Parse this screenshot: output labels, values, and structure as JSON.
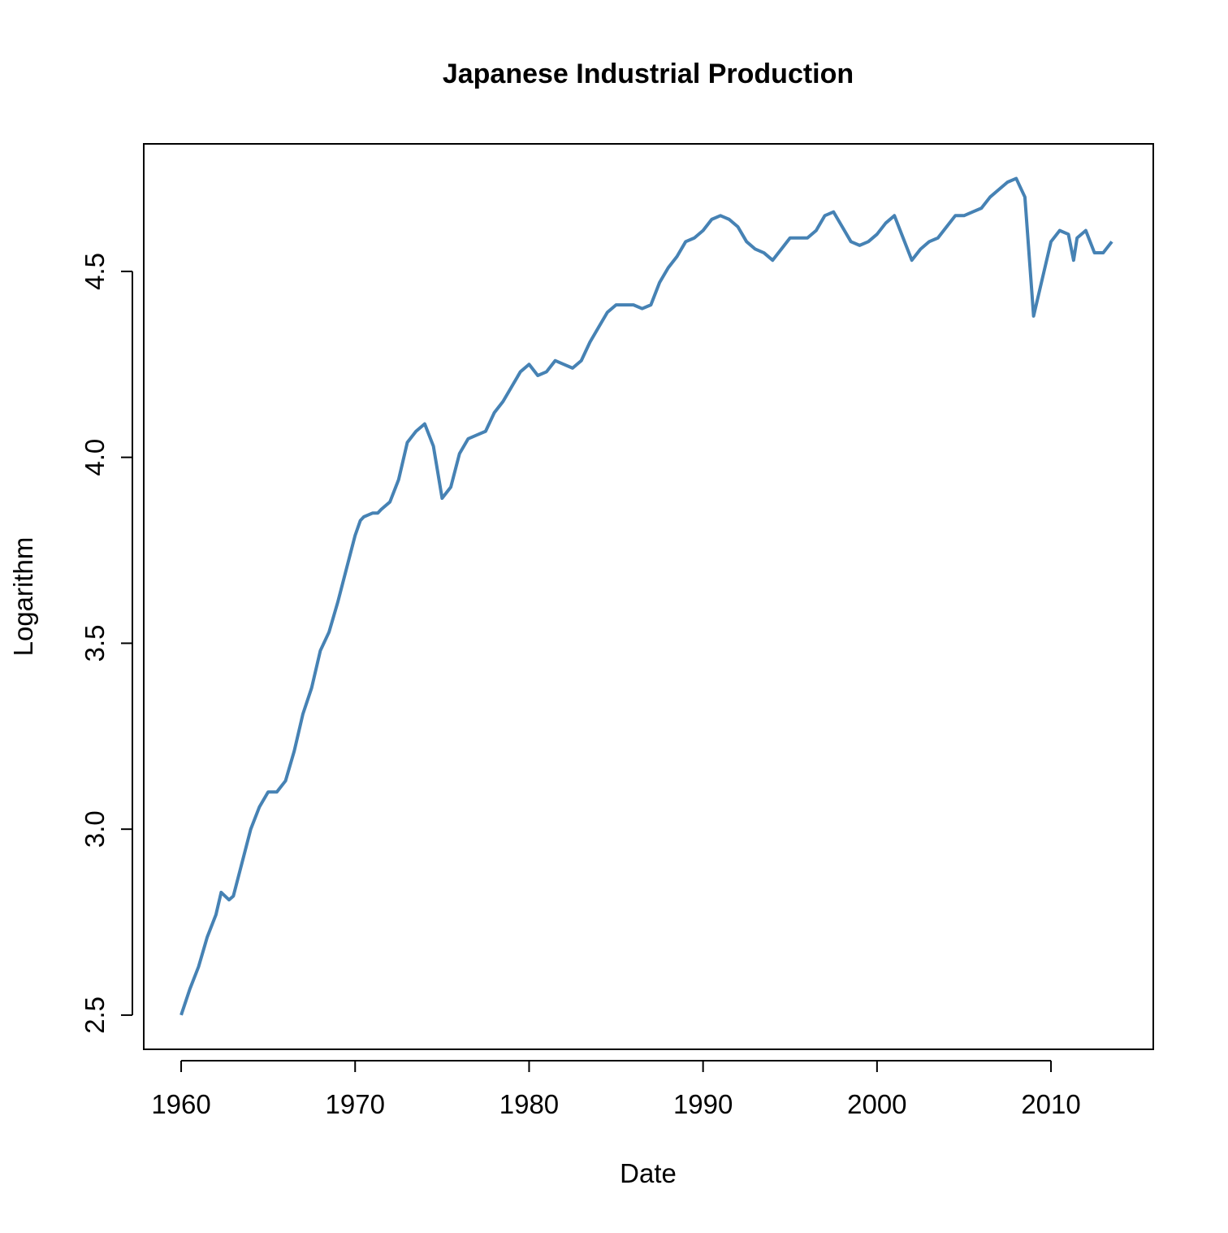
{
  "chart_data": {
    "type": "line",
    "title": "Japanese Industrial Production",
    "x_label": "Date",
    "y_label": "Logarithm",
    "color": "#4682b4",
    "x": [
      1960.0,
      1960.5,
      1961.0,
      1961.5,
      1962.0,
      1962.3,
      1962.75,
      1963.0,
      1963.5,
      1964.0,
      1964.5,
      1965.0,
      1965.5,
      1966.0,
      1966.5,
      1967.0,
      1967.5,
      1968.0,
      1968.5,
      1969.0,
      1969.5,
      1970.0,
      1970.3,
      1970.5,
      1971.0,
      1971.3,
      1971.5,
      1972.0,
      1972.5,
      1973.0,
      1973.5,
      1974.0,
      1974.5,
      1975.0,
      1975.5,
      1976.0,
      1976.5,
      1977.0,
      1977.5,
      1978.0,
      1978.5,
      1979.0,
      1979.5,
      1980.0,
      1980.5,
      1981.0,
      1981.5,
      1982.0,
      1982.5,
      1983.0,
      1983.5,
      1984.0,
      1984.5,
      1985.0,
      1985.5,
      1986.0,
      1986.5,
      1987.0,
      1987.5,
      1988.0,
      1988.5,
      1989.0,
      1989.5,
      1990.0,
      1990.5,
      1991.0,
      1991.5,
      1992.0,
      1992.5,
      1993.0,
      1993.5,
      1994.0,
      1994.5,
      1995.0,
      1995.5,
      1996.0,
      1996.5,
      1997.0,
      1997.5,
      1998.0,
      1998.5,
      1999.0,
      1999.5,
      2000.0,
      2000.5,
      2001.0,
      2001.5,
      2002.0,
      2002.5,
      2003.0,
      2003.5,
      2004.0,
      2004.5,
      2005.0,
      2005.5,
      2006.0,
      2006.5,
      2007.0,
      2007.5,
      2008.0,
      2008.5,
      2009.0,
      2009.5,
      2010.0,
      2010.5,
      2011.0,
      2011.3,
      2011.5,
      2012.0,
      2012.5,
      2013.0,
      2013.5
    ],
    "values": [
      2.5,
      2.57,
      2.63,
      2.71,
      2.77,
      2.83,
      2.81,
      2.82,
      2.91,
      3.0,
      3.06,
      3.1,
      3.1,
      3.13,
      3.21,
      3.31,
      3.38,
      3.48,
      3.53,
      3.61,
      3.7,
      3.79,
      3.83,
      3.84,
      3.85,
      3.85,
      3.86,
      3.88,
      3.94,
      4.04,
      4.07,
      4.09,
      4.03,
      3.89,
      3.92,
      4.01,
      4.05,
      4.06,
      4.07,
      4.12,
      4.15,
      4.19,
      4.23,
      4.25,
      4.22,
      4.23,
      4.26,
      4.25,
      4.24,
      4.26,
      4.31,
      4.35,
      4.39,
      4.41,
      4.41,
      4.41,
      4.4,
      4.41,
      4.47,
      4.51,
      4.54,
      4.58,
      4.59,
      4.61,
      4.64,
      4.65,
      4.64,
      4.62,
      4.58,
      4.56,
      4.55,
      4.53,
      4.56,
      4.59,
      4.59,
      4.59,
      4.61,
      4.65,
      4.66,
      4.62,
      4.58,
      4.57,
      4.58,
      4.6,
      4.63,
      4.65,
      4.59,
      4.53,
      4.56,
      4.58,
      4.59,
      4.62,
      4.65,
      4.65,
      4.66,
      4.67,
      4.7,
      4.72,
      4.74,
      4.75,
      4.7,
      4.38,
      4.48,
      4.58,
      4.61,
      4.6,
      4.53,
      4.59,
      4.61,
      4.55,
      4.55,
      4.58
    ],
    "xlim": [
      1957.85,
      2015.88
    ],
    "ylim": [
      2.408,
      4.843
    ],
    "xticks": [
      1960,
      1970,
      1980,
      1990,
      2000,
      2010
    ],
    "yticks": [
      2.5,
      {
        "value": 3,
        "label": "3.0"
      },
      3.5,
      {
        "value": 4,
        "label": "4.0"
      },
      4.5
    ]
  }
}
